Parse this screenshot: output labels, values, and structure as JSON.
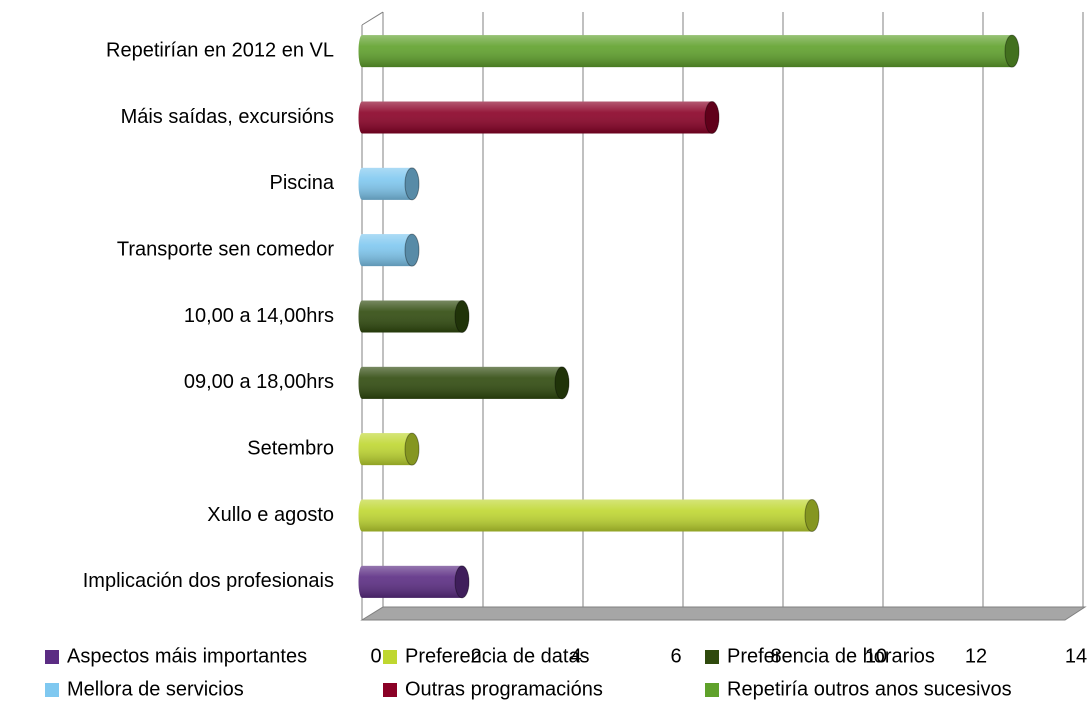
{
  "chart_data": {
    "type": "bar",
    "orientation": "horizontal",
    "categories": [
      "Repetirían en 2012 en VL",
      "Máis saídas, excursións",
      "Piscina",
      "Transporte sen comedor",
      "10,00 a 14,00hrs",
      "09,00 a 18,00hrs",
      "Setembro",
      "Xullo e agosto",
      "Implicación dos profesionais"
    ],
    "series": [
      {
        "name": "Aspectos máis importantes",
        "color": "#5b2c83",
        "values": [
          null,
          null,
          null,
          null,
          null,
          null,
          null,
          null,
          2
        ]
      },
      {
        "name": "Preferencia de datas",
        "color": "#bfd730",
        "values": [
          null,
          null,
          null,
          null,
          null,
          null,
          1,
          9,
          null
        ]
      },
      {
        "name": "Preferencia de horarios",
        "color": "#2f4a0d",
        "values": [
          null,
          null,
          null,
          null,
          2,
          4,
          null,
          null,
          null
        ]
      },
      {
        "name": "Mellora de servicios",
        "color": "#7fc8f0",
        "values": [
          null,
          null,
          1,
          1,
          null,
          null,
          null,
          null,
          null
        ]
      },
      {
        "name": "Outras programacións",
        "color": "#8a0026",
        "values": [
          null,
          7,
          null,
          null,
          null,
          null,
          null,
          null,
          null
        ]
      },
      {
        "name": "Repetiría outros anos sucesivos",
        "color": "#5fa12b",
        "values": [
          13,
          null,
          null,
          null,
          null,
          null,
          null,
          null,
          null
        ]
      }
    ],
    "xlim": [
      0,
      14
    ],
    "xticks": [
      0,
      2,
      4,
      6,
      8,
      10,
      12,
      14
    ],
    "grid": true,
    "legend": "bottom"
  }
}
